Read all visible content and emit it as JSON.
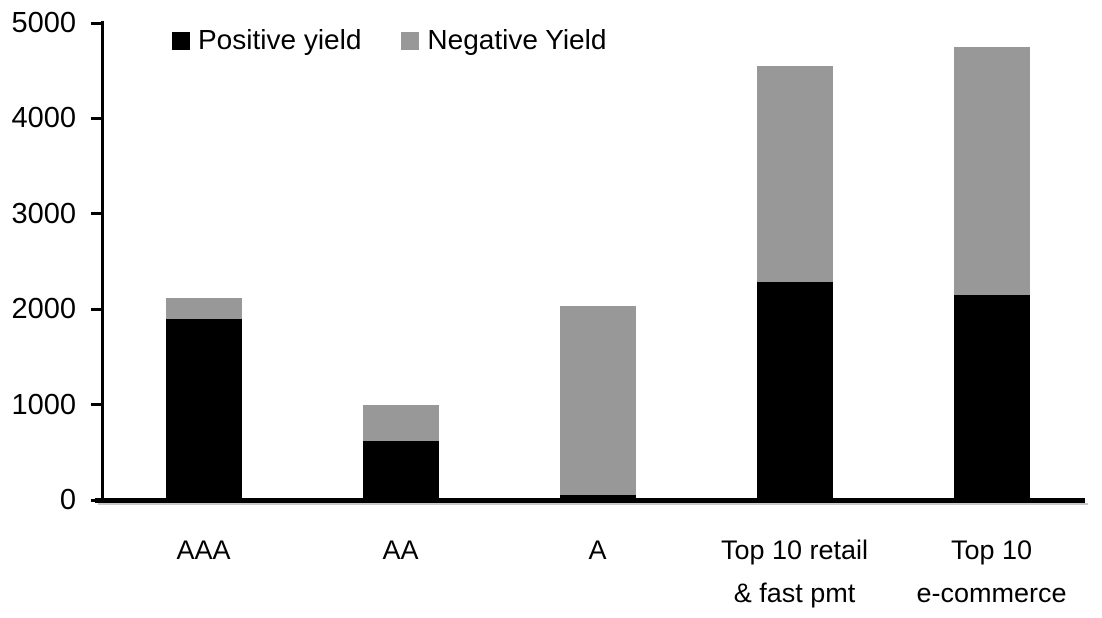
{
  "chart_data": {
    "type": "bar",
    "stacked": true,
    "title": "",
    "xlabel": "",
    "ylabel": "",
    "categories": [
      "AAA",
      "AA",
      "A",
      "Top 10 retail\n& fast pmt",
      "Top 10\ne-commerce"
    ],
    "series": [
      {
        "name": "Positive yield",
        "color": "#000000",
        "values": [
          1900,
          620,
          50,
          2280,
          2150
        ]
      },
      {
        "name": "Negative Yield",
        "color": "#989898",
        "values": [
          220,
          380,
          1980,
          2270,
          2600
        ]
      }
    ],
    "ylim": [
      0,
      5000
    ],
    "yticks": [
      0,
      1000,
      2000,
      3000,
      4000,
      5000
    ],
    "legend_position": "top-left",
    "grid": false,
    "axis_color": "#000000",
    "background_color": "#ffffff"
  }
}
